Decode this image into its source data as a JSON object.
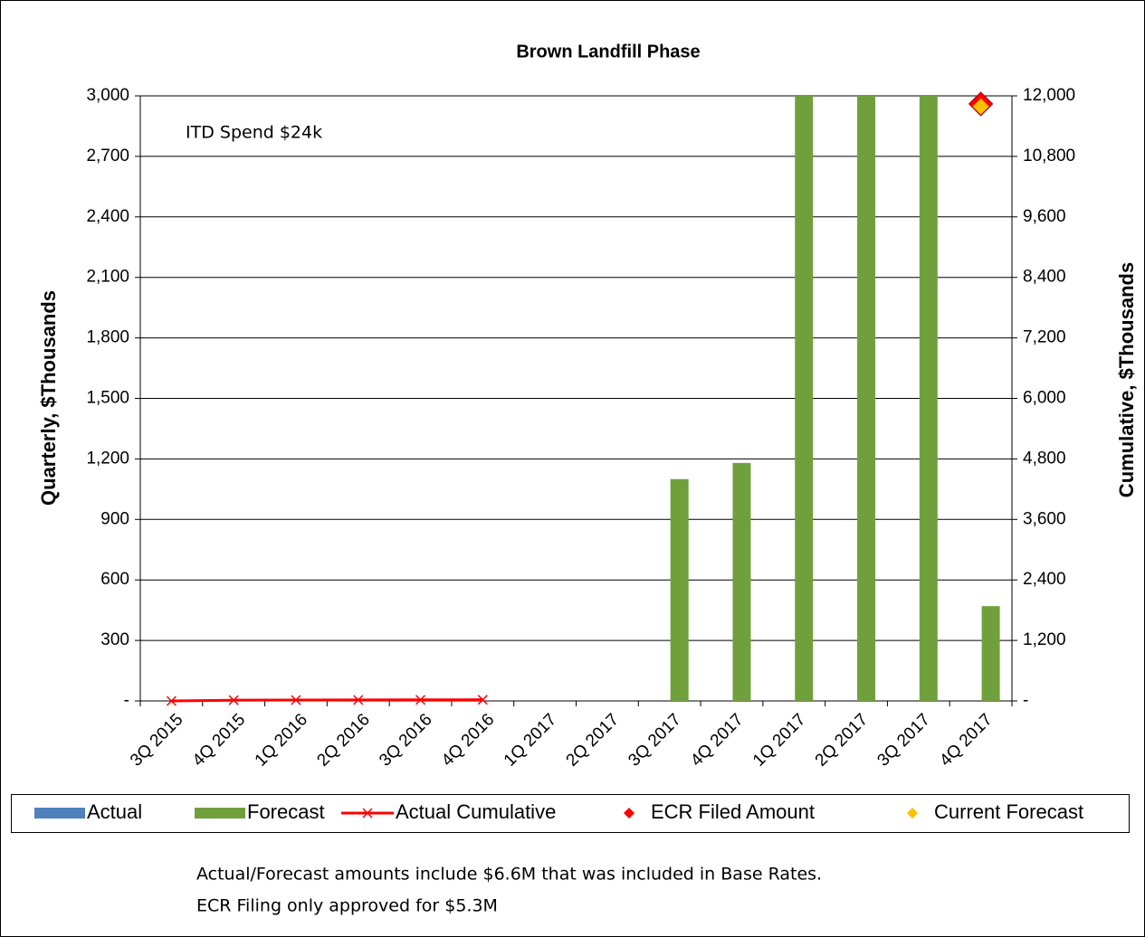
{
  "chart_data": {
    "type": "bar",
    "title": "Brown Landfill Phase",
    "categories": [
      "3Q 2015",
      "4Q 2015",
      "1Q 2016",
      "2Q 2016",
      "3Q 2016",
      "4Q 2016",
      "1Q 2017",
      "2Q 2017",
      "3Q 2017",
      "4Q 2017",
      "1Q 2017",
      "2Q 2017",
      "3Q 2017",
      "4Q 2017"
    ],
    "series": [
      {
        "name": "Actual",
        "type": "bar",
        "color": "#4f81bd",
        "values": [
          0,
          0,
          0,
          0,
          0,
          0,
          null,
          null,
          null,
          null,
          null,
          null,
          null,
          null
        ]
      },
      {
        "name": "Forecast",
        "type": "bar",
        "color": "#70a03c",
        "values": [
          null,
          null,
          null,
          null,
          null,
          null,
          0,
          0,
          1100,
          1180,
          3000,
          3000,
          3000,
          470
        ]
      },
      {
        "name": "Actual Cumulative",
        "type": "line",
        "axis": "y2",
        "color": "#ff0000",
        "values": [
          0,
          15,
          18,
          20,
          22,
          24,
          null,
          null,
          null,
          null,
          null,
          null,
          null,
          null
        ]
      },
      {
        "name": "ECR Filed Amount",
        "type": "scatter",
        "axis": "y2",
        "color": "#ff0000",
        "values": [
          null,
          null,
          null,
          null,
          null,
          null,
          null,
          null,
          null,
          null,
          null,
          null,
          null,
          11840
        ]
      },
      {
        "name": "Current Forecast",
        "type": "scatter",
        "axis": "y2",
        "color": "#ffc000",
        "values": [
          null,
          null,
          null,
          null,
          null,
          null,
          null,
          null,
          null,
          null,
          null,
          null,
          null,
          11790
        ]
      }
    ],
    "ylabel": "Quarterly, $Thousands",
    "y2label": "Cumulative, $Thousands",
    "ylim": [
      0,
      3000
    ],
    "yticks": [
      {
        "value": 0,
        "label": "-"
      },
      300,
      600,
      900,
      {
        "value": 1200,
        "label": "1,200"
      },
      {
        "value": 1500,
        "label": "1,500"
      },
      {
        "value": 1800,
        "label": "1,800"
      },
      {
        "value": 2100,
        "label": "2,100"
      },
      {
        "value": 2400,
        "label": "2,400"
      },
      {
        "value": 2700,
        "label": "2,700"
      },
      {
        "value": 3000,
        "label": "3,000"
      }
    ],
    "y2lim": [
      0,
      12000
    ],
    "y2ticks": [
      {
        "value": 0,
        "label": "-"
      },
      {
        "value": 1200,
        "label": "1,200"
      },
      {
        "value": 2400,
        "label": "2,400"
      },
      {
        "value": 3600,
        "label": "3,600"
      },
      {
        "value": 4800,
        "label": "4,800"
      },
      {
        "value": 6000,
        "label": "6,000"
      },
      {
        "value": 7200,
        "label": "7,200"
      },
      {
        "value": 8400,
        "label": "8,400"
      },
      {
        "value": 9600,
        "label": "9,600"
      },
      {
        "value": 10800,
        "label": "10,800"
      },
      {
        "value": 12000,
        "label": "12,000"
      }
    ],
    "grid": true,
    "legend": "bottom",
    "annotation": "ITD Spend  $24k",
    "notes": [
      "Actual/Forecast amounts include $6.6M that was included in Base Rates.",
      "ECR Filing only approved for $5.3M"
    ]
  }
}
